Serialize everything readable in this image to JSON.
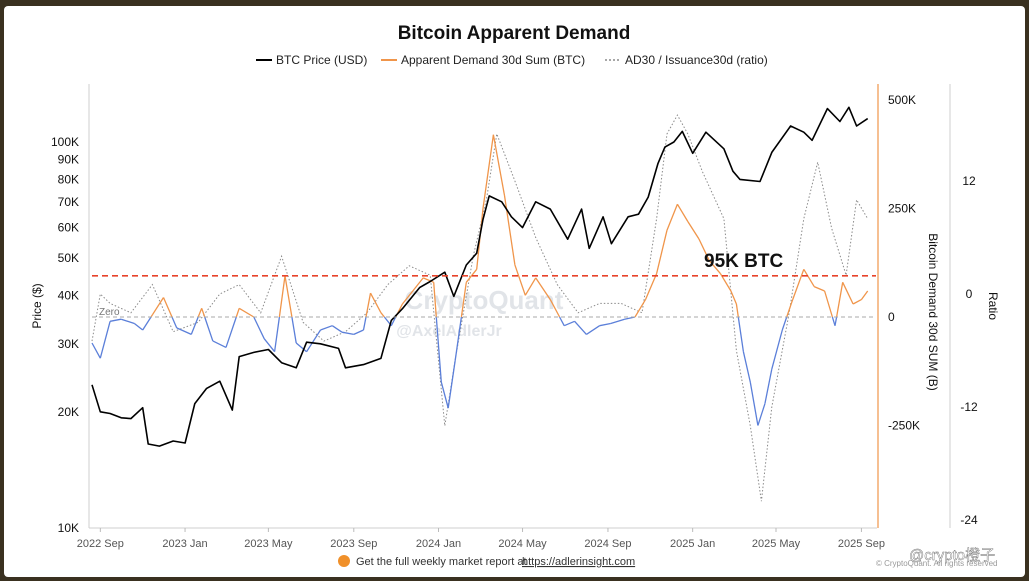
{
  "chart_data": {
    "type": "line",
    "title": "Bitcoin Apparent Demand",
    "legend": [
      {
        "label": "BTC Price (USD)",
        "color": "#000000",
        "style": "solid"
      },
      {
        "label": "Apparent Demand 30d Sum (BTC)",
        "color": "#f0954a",
        "style": "solid"
      },
      {
        "label": "AD30 / Issuance30d (ratio)",
        "color": "#8a8a8a",
        "style": "dotted"
      }
    ],
    "legend_position": "top-center",
    "x_ticks": [
      "2022 Sep",
      "2023 Jan",
      "2023 May",
      "2023 Sep",
      "2024 Jan",
      "2024 May",
      "2024 Sep",
      "2025 Jan",
      "2025 May",
      "2025 Sep"
    ],
    "left_axis": {
      "label": "Price ($)",
      "scale": "log",
      "ticks": [
        "10K",
        "20K",
        "30K",
        "40K",
        "50K",
        "60K",
        "70K",
        "80K",
        "90K",
        "100K"
      ],
      "tick_values": [
        10000,
        20000,
        30000,
        40000,
        50000,
        60000,
        70000,
        80000,
        90000,
        100000
      ],
      "range": [
        10000,
        130000
      ]
    },
    "right_axis_1": {
      "label": "Bitcoin Demand 30d SUM (B)",
      "ticks": [
        "500K",
        "250K",
        "0",
        "-250K"
      ],
      "tick_values": [
        500000,
        250000,
        0,
        -250000
      ],
      "range": [
        -240000,
        500000
      ]
    },
    "right_axis_2": {
      "label": "Ratio",
      "ticks": [
        "12",
        "0",
        "-12",
        "-24"
      ],
      "tick_values": [
        12,
        0,
        -12,
        -24
      ],
      "range": [
        -24,
        20
      ]
    },
    "reference_lines": [
      {
        "label": "95K BTC",
        "value": 95000,
        "axis": "right_axis_1",
        "color": "#e8432a",
        "style": "dashed"
      },
      {
        "label": "Zero",
        "value": 0,
        "axis": "right_axis_1",
        "color": "#aaaaaa",
        "style": "dashed"
      }
    ],
    "series": [
      {
        "name": "BTC Price (USD)",
        "axis": "left",
        "color": "#000000",
        "x": [
          "2022-08-20",
          "2022-09-01",
          "2022-09-15",
          "2022-10-01",
          "2022-10-15",
          "2022-11-01",
          "2022-11-09",
          "2022-11-25",
          "2022-12-15",
          "2023-01-01",
          "2023-01-15",
          "2023-02-01",
          "2023-02-20",
          "2023-03-10",
          "2023-03-20",
          "2023-04-10",
          "2023-05-01",
          "2023-05-20",
          "2023-06-10",
          "2023-06-25",
          "2023-07-15",
          "2023-08-10",
          "2023-08-20",
          "2023-09-15",
          "2023-10-10",
          "2023-10-25",
          "2023-11-10",
          "2023-12-05",
          "2023-12-20",
          "2024-01-10",
          "2024-01-23",
          "2024-02-10",
          "2024-02-25",
          "2024-03-05",
          "2024-03-14",
          "2024-04-01",
          "2024-04-15",
          "2024-05-01",
          "2024-05-20",
          "2024-06-10",
          "2024-07-05",
          "2024-07-25",
          "2024-08-05",
          "2024-08-25",
          "2024-09-06",
          "2024-09-30",
          "2024-10-15",
          "2024-10-29",
          "2024-11-12",
          "2024-11-22",
          "2024-12-05",
          "2024-12-17",
          "2025-01-01",
          "2025-01-20",
          "2025-02-15",
          "2025-02-28",
          "2025-03-10",
          "2025-04-08",
          "2025-04-25",
          "2025-05-22",
          "2025-06-10",
          "2025-06-22",
          "2025-07-14",
          "2025-08-01",
          "2025-08-14",
          "2025-08-25",
          "2025-09-10"
        ],
        "values": [
          23500,
          20000,
          19800,
          19300,
          19200,
          20500,
          16500,
          16300,
          16800,
          16600,
          21000,
          23000,
          24000,
          20200,
          27800,
          28500,
          29000,
          26800,
          26000,
          30300,
          30000,
          29200,
          26000,
          26500,
          27500,
          34500,
          37000,
          42000,
          43500,
          46000,
          39800,
          48000,
          51500,
          63000,
          72500,
          70000,
          64000,
          60000,
          70000,
          67000,
          56000,
          67000,
          53000,
          64000,
          54500,
          64000,
          65000,
          72000,
          88000,
          97000,
          100000,
          106500,
          93500,
          106000,
          96000,
          84000,
          80000,
          79000,
          94000,
          110000,
          106000,
          101000,
          122000,
          113000,
          123000,
          110000,
          115000
        ]
      },
      {
        "name": "Apparent Demand 30d Sum (BTC)",
        "axis": "right_axis_1",
        "color": "#f0954a",
        "negative_color": "#5b7fd9",
        "x": [
          "2022-08-20",
          "2022-09-01",
          "2022-09-15",
          "2022-10-01",
          "2022-10-20",
          "2022-11-01",
          "2022-11-15",
          "2022-12-01",
          "2022-12-20",
          "2023-01-10",
          "2023-01-25",
          "2023-02-10",
          "2023-03-01",
          "2023-03-20",
          "2023-04-10",
          "2023-04-25",
          "2023-05-10",
          "2023-05-25",
          "2023-06-10",
          "2023-06-25",
          "2023-07-15",
          "2023-08-01",
          "2023-08-15",
          "2023-09-01",
          "2023-09-15",
          "2023-09-25",
          "2023-10-10",
          "2023-10-25",
          "2023-11-10",
          "2023-11-25",
          "2023-12-10",
          "2023-12-25",
          "2024-01-05",
          "2024-01-15",
          "2024-01-25",
          "2024-02-10",
          "2024-02-25",
          "2024-03-05",
          "2024-03-20",
          "2024-04-05",
          "2024-04-20",
          "2024-05-05",
          "2024-05-20",
          "2024-06-10",
          "2024-06-30",
          "2024-07-15",
          "2024-08-01",
          "2024-08-20",
          "2024-09-05",
          "2024-09-25",
          "2024-10-10",
          "2024-10-25",
          "2024-11-10",
          "2024-11-25",
          "2024-12-10",
          "2024-12-25",
          "2025-01-10",
          "2025-01-25",
          "2025-02-10",
          "2025-02-25",
          "2025-03-05",
          "2025-03-15",
          "2025-03-25",
          "2025-04-05",
          "2025-04-15",
          "2025-04-25",
          "2025-05-10",
          "2025-05-25",
          "2025-06-10",
          "2025-06-25",
          "2025-07-10",
          "2025-07-25",
          "2025-08-05",
          "2025-08-20",
          "2025-09-01",
          "2025-09-10"
        ],
        "values": [
          -60000,
          -95000,
          -10000,
          -5000,
          -15000,
          -30000,
          5000,
          45000,
          -25000,
          -40000,
          20000,
          -55000,
          -70000,
          20000,
          0,
          -50000,
          -80000,
          95000,
          -60000,
          -80000,
          -30000,
          -20000,
          -35000,
          -40000,
          -30000,
          55000,
          10000,
          -20000,
          30000,
          60000,
          90000,
          80000,
          -150000,
          -210000,
          -100000,
          80000,
          110000,
          250000,
          420000,
          280000,
          120000,
          50000,
          90000,
          40000,
          -20000,
          -10000,
          -40000,
          -20000,
          -15000,
          -5000,
          0,
          40000,
          100000,
          200000,
          260000,
          220000,
          180000,
          130000,
          100000,
          60000,
          30000,
          -80000,
          -150000,
          -250000,
          -200000,
          -120000,
          -30000,
          40000,
          110000,
          70000,
          60000,
          -20000,
          80000,
          30000,
          40000,
          60000
        ]
      },
      {
        "name": "AD30 / Issuance30d (ratio)",
        "axis": "right_axis_2",
        "color": "#8a8a8a",
        "x": [
          "2022-08-20",
          "2022-09-01",
          "2022-09-15",
          "2022-10-15",
          "2022-11-15",
          "2022-12-15",
          "2023-01-20",
          "2023-02-20",
          "2023-03-20",
          "2023-04-20",
          "2023-05-20",
          "2023-06-20",
          "2023-07-20",
          "2023-08-20",
          "2023-09-20",
          "2023-10-20",
          "2023-11-20",
          "2023-12-20",
          "2024-01-10",
          "2024-01-25",
          "2024-02-20",
          "2024-03-10",
          "2024-03-25",
          "2024-04-20",
          "2024-05-20",
          "2024-06-20",
          "2024-07-20",
          "2024-08-20",
          "2024-09-20",
          "2024-10-20",
          "2024-11-10",
          "2024-11-25",
          "2024-12-10",
          "2024-12-25",
          "2025-01-15",
          "2025-02-15",
          "2025-03-05",
          "2025-03-25",
          "2025-04-10",
          "2025-04-25",
          "2025-05-20",
          "2025-06-10",
          "2025-06-30",
          "2025-07-20",
          "2025-08-10",
          "2025-08-25",
          "2025-09-10"
        ],
        "values": [
          -5,
          0,
          -1,
          -2,
          1,
          -4,
          -3,
          0,
          1,
          -2,
          4,
          -3,
          -5,
          -4,
          -2,
          1,
          3,
          2,
          -14,
          -7,
          4,
          10,
          17,
          12,
          6,
          1,
          -2,
          -1,
          -1,
          -2,
          8,
          17,
          19,
          17,
          13,
          8,
          -6,
          -14,
          -22,
          -12,
          -2,
          8,
          14,
          7,
          2,
          10,
          8
        ]
      }
    ],
    "annotations": [
      {
        "text": "95K BTC"
      },
      {
        "text": "Zero"
      }
    ],
    "grid": false
  },
  "watermarks": {
    "center_1": "CryptoQuant",
    "center_2": "@AxelAdlerJr",
    "corner": "@crypto橙子",
    "copyright": "© CryptoQuant. All rights reserved"
  },
  "footer": {
    "prefix": "Get the full weekly market report at",
    "link": "https://adlerinsight.com",
    "icon": "orange-circle-icon"
  },
  "colors": {
    "positive_demand": "#f0954a",
    "negative_demand": "#5b7fd9",
    "price": "#000000",
    "ratio": "#8a8a8a",
    "threshold": "#e8432a",
    "right_axis_line": "#f0954a"
  }
}
